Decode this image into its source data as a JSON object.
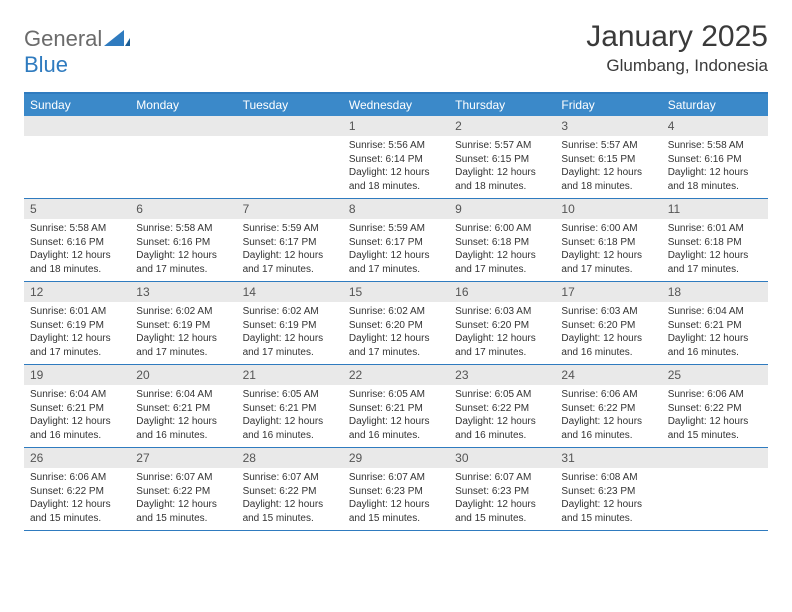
{
  "brand": {
    "part1": "General",
    "part2": "Blue"
  },
  "title": "January 2025",
  "location": "Glumbang, Indonesia",
  "colors": {
    "header_bg": "#3b89c9",
    "rule": "#2f7bbf",
    "daynum_bg": "#e9e9e9",
    "text": "#333333",
    "logo_gray": "#6b6b6b"
  },
  "typography": {
    "title_fontsize": 30,
    "location_fontsize": 17,
    "dayheader_fontsize": 12,
    "cell_fontsize": 10
  },
  "day_names": [
    "Sunday",
    "Monday",
    "Tuesday",
    "Wednesday",
    "Thursday",
    "Friday",
    "Saturday"
  ],
  "weeks": [
    [
      null,
      null,
      null,
      {
        "n": "1",
        "sr": "5:56 AM",
        "ss": "6:14 PM",
        "dl": "12 hours and 18 minutes."
      },
      {
        "n": "2",
        "sr": "5:57 AM",
        "ss": "6:15 PM",
        "dl": "12 hours and 18 minutes."
      },
      {
        "n": "3",
        "sr": "5:57 AM",
        "ss": "6:15 PM",
        "dl": "12 hours and 18 minutes."
      },
      {
        "n": "4",
        "sr": "5:58 AM",
        "ss": "6:16 PM",
        "dl": "12 hours and 18 minutes."
      }
    ],
    [
      {
        "n": "5",
        "sr": "5:58 AM",
        "ss": "6:16 PM",
        "dl": "12 hours and 18 minutes."
      },
      {
        "n": "6",
        "sr": "5:58 AM",
        "ss": "6:16 PM",
        "dl": "12 hours and 17 minutes."
      },
      {
        "n": "7",
        "sr": "5:59 AM",
        "ss": "6:17 PM",
        "dl": "12 hours and 17 minutes."
      },
      {
        "n": "8",
        "sr": "5:59 AM",
        "ss": "6:17 PM",
        "dl": "12 hours and 17 minutes."
      },
      {
        "n": "9",
        "sr": "6:00 AM",
        "ss": "6:18 PM",
        "dl": "12 hours and 17 minutes."
      },
      {
        "n": "10",
        "sr": "6:00 AM",
        "ss": "6:18 PM",
        "dl": "12 hours and 17 minutes."
      },
      {
        "n": "11",
        "sr": "6:01 AM",
        "ss": "6:18 PM",
        "dl": "12 hours and 17 minutes."
      }
    ],
    [
      {
        "n": "12",
        "sr": "6:01 AM",
        "ss": "6:19 PM",
        "dl": "12 hours and 17 minutes."
      },
      {
        "n": "13",
        "sr": "6:02 AM",
        "ss": "6:19 PM",
        "dl": "12 hours and 17 minutes."
      },
      {
        "n": "14",
        "sr": "6:02 AM",
        "ss": "6:19 PM",
        "dl": "12 hours and 17 minutes."
      },
      {
        "n": "15",
        "sr": "6:02 AM",
        "ss": "6:20 PM",
        "dl": "12 hours and 17 minutes."
      },
      {
        "n": "16",
        "sr": "6:03 AM",
        "ss": "6:20 PM",
        "dl": "12 hours and 17 minutes."
      },
      {
        "n": "17",
        "sr": "6:03 AM",
        "ss": "6:20 PM",
        "dl": "12 hours and 16 minutes."
      },
      {
        "n": "18",
        "sr": "6:04 AM",
        "ss": "6:21 PM",
        "dl": "12 hours and 16 minutes."
      }
    ],
    [
      {
        "n": "19",
        "sr": "6:04 AM",
        "ss": "6:21 PM",
        "dl": "12 hours and 16 minutes."
      },
      {
        "n": "20",
        "sr": "6:04 AM",
        "ss": "6:21 PM",
        "dl": "12 hours and 16 minutes."
      },
      {
        "n": "21",
        "sr": "6:05 AM",
        "ss": "6:21 PM",
        "dl": "12 hours and 16 minutes."
      },
      {
        "n": "22",
        "sr": "6:05 AM",
        "ss": "6:21 PM",
        "dl": "12 hours and 16 minutes."
      },
      {
        "n": "23",
        "sr": "6:05 AM",
        "ss": "6:22 PM",
        "dl": "12 hours and 16 minutes."
      },
      {
        "n": "24",
        "sr": "6:06 AM",
        "ss": "6:22 PM",
        "dl": "12 hours and 16 minutes."
      },
      {
        "n": "25",
        "sr": "6:06 AM",
        "ss": "6:22 PM",
        "dl": "12 hours and 15 minutes."
      }
    ],
    [
      {
        "n": "26",
        "sr": "6:06 AM",
        "ss": "6:22 PM",
        "dl": "12 hours and 15 minutes."
      },
      {
        "n": "27",
        "sr": "6:07 AM",
        "ss": "6:22 PM",
        "dl": "12 hours and 15 minutes."
      },
      {
        "n": "28",
        "sr": "6:07 AM",
        "ss": "6:22 PM",
        "dl": "12 hours and 15 minutes."
      },
      {
        "n": "29",
        "sr": "6:07 AM",
        "ss": "6:23 PM",
        "dl": "12 hours and 15 minutes."
      },
      {
        "n": "30",
        "sr": "6:07 AM",
        "ss": "6:23 PM",
        "dl": "12 hours and 15 minutes."
      },
      {
        "n": "31",
        "sr": "6:08 AM",
        "ss": "6:23 PM",
        "dl": "12 hours and 15 minutes."
      },
      null
    ]
  ],
  "labels": {
    "sunrise": "Sunrise:",
    "sunset": "Sunset:",
    "daylight": "Daylight:"
  }
}
